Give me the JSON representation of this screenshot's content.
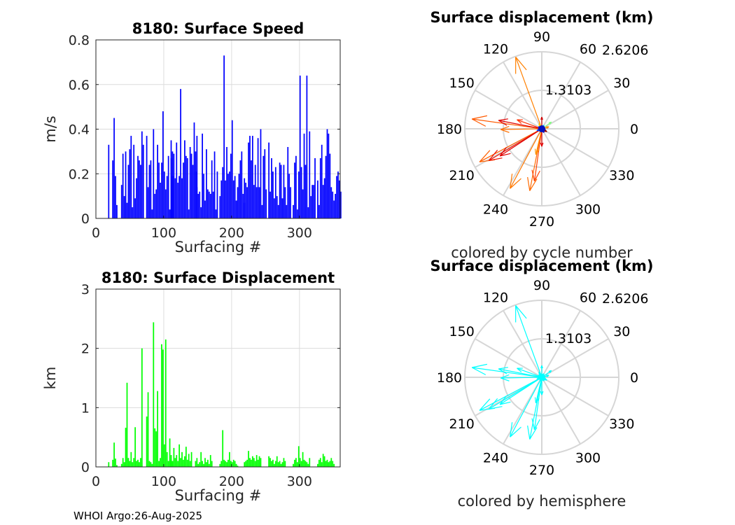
{
  "chart_data": [
    {
      "type": "bar",
      "title": "8180: Surface Speed",
      "xlabel": "Surfacing #",
      "ylabel": "m/s",
      "xlim": [
        0,
        360
      ],
      "ylim": [
        0,
        0.8
      ],
      "xticks": [
        "0",
        "100",
        "200",
        "300"
      ],
      "yticks": [
        "0",
        "0.2",
        "0.4",
        "0.6",
        "0.8"
      ],
      "grid": true,
      "color": "#0000ff",
      "bar_step": 2,
      "clusters": [
        {
          "start": 18,
          "values": [
            0.33,
            0,
            0,
            0.26,
            0.45,
            0.19,
            0.06
          ]
        },
        {
          "start": 37,
          "values": [
            0.15,
            0.29,
            0.1,
            0.3,
            0.07,
            0.24,
            0.31,
            0.37,
            0.05,
            0.33,
            0.09,
            0.18,
            0.28,
            0.26,
            0.24,
            0.39,
            0.33
          ]
        },
        {
          "start": 74,
          "values": [
            0.37,
            0.14,
            0.24,
            0.26,
            0.04,
            0.4,
            0.11,
            0.13,
            0.33,
            0.25,
            0.16,
            0.25,
            0.48,
            0.21,
            0.13,
            0.19,
            0.28,
            0.04,
            0.35,
            0.3
          ]
        },
        {
          "start": 110,
          "values": [
            0.27,
            0.19,
            0.29,
            0.18,
            0.34,
            0.16,
            0.19,
            0.58,
            0.18,
            0.25,
            0.35,
            0.28,
            0.27,
            0.04,
            0.32,
            0.29,
            0.24,
            0.43,
            0.3,
            0.14
          ]
        },
        {
          "start": 146,
          "values": [
            0.21,
            0.37,
            0.11,
            0.12,
            0.05,
            0.38,
            0.2,
            0.08,
            0.31,
            0.13,
            0.12,
            0.11,
            0.26,
            0.12,
            0.3,
            0.04,
            0.21
          ]
        },
        {
          "start": 182,
          "values": [
            0.1,
            0.17,
            0.23,
            0.73,
            0.17,
            0.32,
            0.2,
            0.21,
            0.29,
            0.44,
            0.17,
            0.19,
            0.08,
            0.14,
            0.2,
            0.26,
            0.3,
            0.11,
            0.07
          ]
        },
        {
          "start": 218,
          "values": [
            0.18,
            0.16,
            0.14,
            0.34,
            0.37,
            0.26,
            0.37,
            0.15,
            0.24,
            0.14,
            0.36,
            0.14,
            0.4,
            0.06,
            0.28,
            0.31,
            0.13
          ]
        },
        {
          "start": 254,
          "values": [
            0.34,
            0.12,
            0.27,
            0.21,
            0.09,
            0.23,
            0.1,
            0.06,
            0.25,
            0.24,
            0.09,
            0.24,
            0.14,
            0.06,
            0.32,
            0.2,
            0.14
          ]
        },
        {
          "start": 290,
          "values": [
            0.06,
            0.25,
            0.28,
            0.04,
            0.21,
            0.64,
            0.23,
            0.13,
            0.38,
            0.24,
            0.64,
            0.05,
            0.39,
            0.1,
            0.15,
            0.15,
            0.27
          ]
        },
        {
          "start": 326,
          "values": [
            0.17,
            0.06,
            0.27,
            0.33,
            0.15,
            0.18,
            0.28,
            0.4,
            0.38,
            0.29,
            0.14,
            0.12,
            0.08,
            0.11,
            0.19,
            0.21,
            0.17,
            0.12
          ]
        }
      ]
    },
    {
      "type": "bar",
      "title": "8180: Surface Displacement",
      "xlabel": "Surfacing #",
      "ylabel": "km",
      "xlim": [
        0,
        360
      ],
      "ylim": [
        0,
        3
      ],
      "xticks": [
        "0",
        "100",
        "200",
        "300"
      ],
      "yticks": [
        "0",
        "1",
        "2",
        "3"
      ],
      "grid": true,
      "color": "#00ff00",
      "bar_step": 2,
      "clusters": [
        {
          "start": 18,
          "values": [
            0.08,
            0,
            0,
            0.12,
            0.41,
            0.14,
            0.03
          ]
        },
        {
          "start": 37,
          "values": [
            0.05,
            0.15,
            0.08,
            0.66,
            1.42,
            0.15,
            0.1,
            0.25,
            0.08,
            0.15,
            0.67,
            0.1,
            0.12,
            0.08,
            0.15,
            2.0
          ]
        },
        {
          "start": 74,
          "values": [
            0.85,
            1.26,
            0.1,
            0.08,
            0.05,
            2.44,
            0.65,
            0.6,
            1.28,
            0.1,
            0.15,
            2.07,
            1.98,
            0.38,
            2.15,
            0.25,
            0.1,
            0.48,
            0.2
          ]
        },
        {
          "start": 110,
          "values": [
            0.12,
            0.1,
            0.32,
            0.15,
            0.2,
            0.1,
            0.38,
            0.15,
            0.25,
            0.12,
            0.18,
            0.34,
            0.12,
            0.22,
            0.1,
            0.25
          ]
        },
        {
          "start": 146,
          "values": [
            0.1,
            0.15,
            0.05,
            0.08,
            0.25,
            0.1,
            0.05,
            0.15,
            0.08,
            0.12,
            0.05,
            0.2,
            0.1
          ]
        },
        {
          "start": 182,
          "values": [
            0.05,
            0.1,
            0.62,
            0.12,
            0.1,
            0.08,
            0.12,
            0.25,
            0.1,
            0.08,
            0.12,
            0.1,
            0.05,
            0.02
          ]
        },
        {
          "start": 218,
          "values": [
            0.08,
            0.1,
            0.12,
            0.27,
            0.15,
            0.12,
            0.18,
            0.15,
            0.1,
            0.2,
            0.12,
            0.18,
            0.15
          ]
        },
        {
          "start": 254,
          "values": [
            0.18,
            0.15,
            0.1,
            0.12,
            0.05,
            0.1,
            0.18,
            0.08,
            0.1,
            0.05,
            0.08,
            0.15,
            0.1
          ]
        },
        {
          "start": 290,
          "values": [
            0.05,
            0.12,
            0.15,
            0.08,
            0.35,
            0.15,
            0.1,
            0.25,
            0.12,
            0.1,
            0.08,
            0.05,
            0.15
          ]
        },
        {
          "start": 326,
          "values": [
            0.05,
            0.12,
            0.15,
            0.08,
            0.22,
            0.18,
            0.1,
            0.12,
            0.08,
            0.1,
            0.15,
            0.1,
            0.05
          ]
        }
      ]
    },
    {
      "type": "polar-quiver",
      "title": "Surface displacement (km)",
      "caption": "colored by cycle number",
      "rmax": 2.6206,
      "rings": [
        "1.3103",
        "2.6206"
      ],
      "angle_labels": [
        "0",
        "30",
        "60",
        "90",
        "120",
        "150",
        "180",
        "210",
        "240",
        "270",
        "300",
        "330"
      ],
      "arrows": [
        {
          "theta": 110,
          "r": 2.6,
          "color": "#ff8000"
        },
        {
          "theta": 172,
          "r": 2.4,
          "color": "#ff5a00"
        },
        {
          "theta": 169,
          "r": 1.5,
          "color": "#e00000"
        },
        {
          "theta": 181,
          "r": 1.4,
          "color": "#ff7000"
        },
        {
          "theta": 160,
          "r": 0.9,
          "color": "#ff3000"
        },
        {
          "theta": 208,
          "r": 2.4,
          "color": "#ff6000"
        },
        {
          "theta": 211,
          "r": 2.1,
          "color": "#ee1000"
        },
        {
          "theta": 213,
          "r": 1.7,
          "color": "#dd0000"
        },
        {
          "theta": 242,
          "r": 2.3,
          "color": "#ff7800"
        },
        {
          "theta": 259,
          "r": 2.15,
          "color": "#ff6a00"
        },
        {
          "theta": 262,
          "r": 1.8,
          "color": "#ff4000"
        },
        {
          "theta": 257,
          "r": 0.9,
          "color": "#ff9000"
        },
        {
          "theta": 270,
          "r": 0.6,
          "color": "#e00000"
        },
        {
          "theta": 90,
          "r": 0.4,
          "color": "#cc0000"
        },
        {
          "theta": 35,
          "r": 0.4,
          "color": "#80ff80"
        },
        {
          "theta": 330,
          "r": 0.2,
          "color": "#900000"
        },
        {
          "theta": 15,
          "r": 0.25,
          "color": "#ff8800"
        },
        {
          "theta": 120,
          "r": 0.2,
          "color": "#ffd000"
        },
        {
          "theta": 60,
          "r": 0.15,
          "color": "#00d0ff"
        },
        {
          "theta": 200,
          "r": 0.18,
          "color": "#0050ff"
        },
        {
          "theta": 300,
          "r": 0.15,
          "color": "#0000c0"
        },
        {
          "theta": 240,
          "r": 0.12,
          "color": "#0090ff"
        },
        {
          "theta": 0,
          "r": 0.12,
          "color": "#0000a0"
        },
        {
          "theta": 150,
          "r": 0.14,
          "color": "#1030ff"
        }
      ]
    },
    {
      "type": "polar-quiver",
      "title": "Surface displacement (km)",
      "caption": "colored by hemisphere",
      "rmax": 2.6206,
      "rings": [
        "1.3103",
        "2.6206"
      ],
      "angle_labels": [
        "0",
        "30",
        "60",
        "90",
        "120",
        "150",
        "180",
        "210",
        "240",
        "270",
        "300",
        "330"
      ],
      "arrows_color": "#00ffff"
    }
  ],
  "footer": "WHOI Argo:26-Aug-2025"
}
